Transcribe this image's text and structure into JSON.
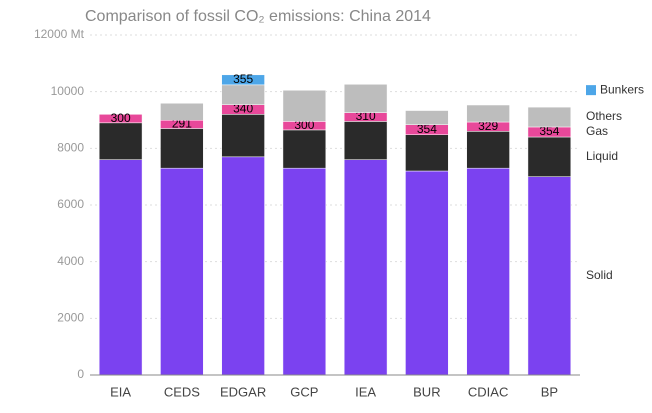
{
  "chart_data": {
    "type": "stacked_bar",
    "title": "Comparison of fossil CO₂ emissions: China 2014",
    "categories": [
      "EIA",
      "CEDS",
      "EDGAR",
      "GCP",
      "IEA",
      "BUR",
      "CDIAC",
      "BP"
    ],
    "series": [
      {
        "name": "Solid",
        "color": "#7b42f0",
        "values": [
          7600,
          7300,
          7700,
          7300,
          7600,
          7200,
          7300,
          7000
        ]
      },
      {
        "name": "Liquid",
        "color": "#2a2a2a",
        "values": [
          1300,
          1400,
          1500,
          1350,
          1350,
          1280,
          1300,
          1400
        ]
      },
      {
        "name": "Gas",
        "color": "#e8489a",
        "values": [
          300,
          291,
          340,
          300,
          310,
          354,
          329,
          354
        ]
      },
      {
        "name": "Others",
        "color": "#bdbdbd",
        "values": [
          null,
          600,
          700,
          1100,
          1000,
          500,
          600,
          700
        ]
      },
      {
        "name": "Bunkers",
        "color": "#4da6e8",
        "values": [
          null,
          null,
          355,
          null,
          null,
          null,
          null,
          null
        ]
      }
    ],
    "ylim": [
      0,
      12000
    ],
    "yticks": [
      0,
      2000,
      4000,
      6000,
      8000,
      10000,
      {
        "value": 12000,
        "label": "12000 Mt"
      }
    ],
    "grid": true
  }
}
